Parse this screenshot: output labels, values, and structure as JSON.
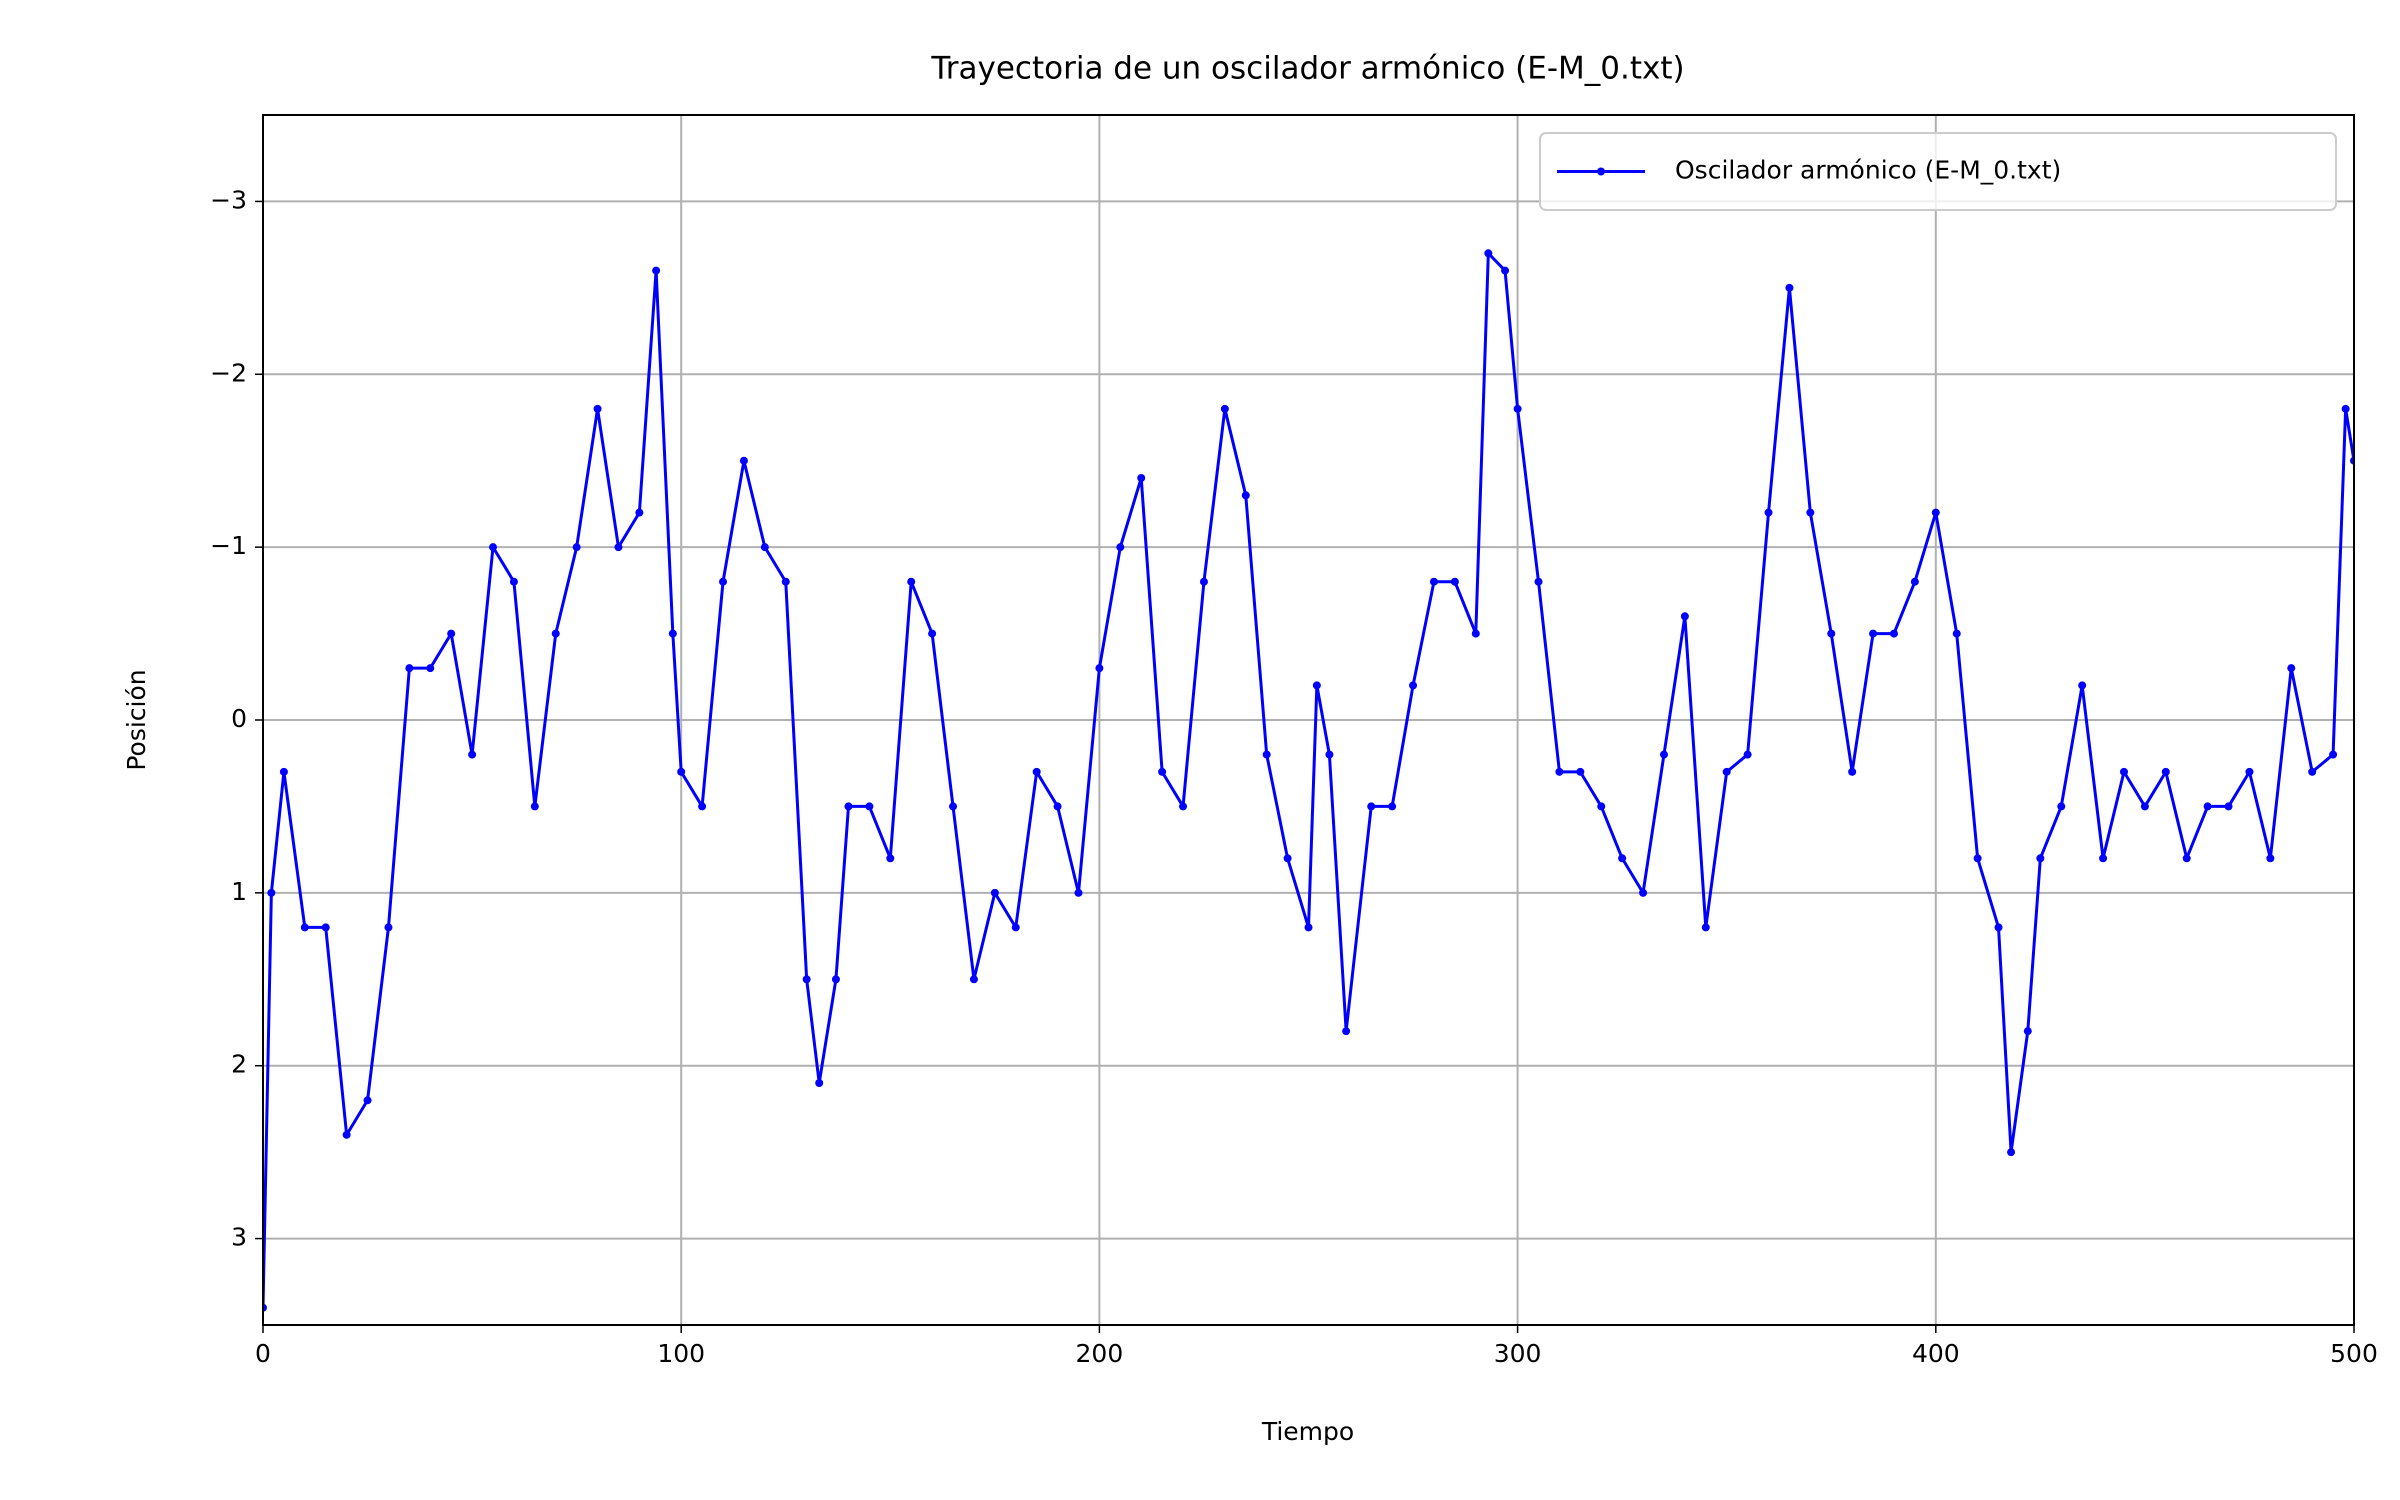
{
  "chart_data": {
    "type": "line",
    "title": "Trayectoria de un oscilador armónico (E-M_0.txt)",
    "xlabel": "Tiempo",
    "ylabel": "Posición",
    "x": [
      0,
      2,
      5,
      10,
      15,
      20,
      25,
      30,
      35,
      40,
      45,
      50,
      55,
      60,
      65,
      70,
      75,
      80,
      85,
      90,
      94,
      98,
      100,
      105,
      110,
      115,
      120,
      125,
      130,
      133,
      137,
      140,
      145,
      150,
      155,
      160,
      165,
      170,
      175,
      180,
      185,
      190,
      195,
      200,
      205,
      210,
      215,
      220,
      225,
      230,
      235,
      240,
      245,
      250,
      252,
      255,
      259,
      265,
      270,
      275,
      280,
      285,
      290,
      293,
      297,
      300,
      305,
      310,
      315,
      320,
      325,
      330,
      335,
      340,
      345,
      350,
      355,
      360,
      365,
      370,
      375,
      380,
      385,
      390,
      395,
      400,
      405,
      410,
      415,
      418,
      422,
      425,
      430,
      435,
      440,
      445,
      450,
      455,
      460,
      465,
      470,
      475,
      480,
      485,
      490,
      495,
      498,
      500
    ],
    "series": [
      {
        "name": "Oscilador armónico (E-M_0.txt)",
        "color": "blue",
        "values": [
          3.4,
          1.0,
          0.3,
          1.2,
          1.2,
          2.4,
          2.2,
          1.2,
          -0.3,
          -0.3,
          -0.5,
          0.2,
          -1.0,
          -0.8,
          0.5,
          -0.5,
          -1.0,
          -1.8,
          -1.0,
          -1.2,
          -2.6,
          -0.5,
          0.3,
          0.5,
          -0.8,
          -1.5,
          -1.0,
          -0.8,
          1.5,
          2.1,
          1.5,
          0.5,
          0.5,
          0.8,
          -0.8,
          -0.5,
          0.5,
          1.5,
          1.0,
          1.2,
          0.3,
          0.5,
          1.0,
          -0.3,
          -1.0,
          -1.4,
          0.3,
          0.5,
          -0.8,
          -1.8,
          -1.3,
          0.2,
          0.8,
          1.2,
          -0.2,
          0.2,
          1.8,
          0.5,
          0.5,
          -0.2,
          -0.8,
          -0.8,
          -0.5,
          -2.7,
          -2.6,
          -1.8,
          -0.8,
          0.3,
          0.3,
          0.5,
          0.8,
          1.0,
          0.2,
          -0.6,
          1.2,
          0.3,
          0.2,
          -1.2,
          -2.5,
          -1.2,
          -0.5,
          0.3,
          -0.5,
          -0.5,
          -0.8,
          -1.2,
          -0.5,
          0.8,
          1.2,
          2.5,
          1.8,
          0.8,
          0.5,
          -0.2,
          0.8,
          0.3,
          0.5,
          0.3,
          0.8,
          0.5,
          0.5,
          0.3,
          0.8,
          -0.3,
          0.3,
          0.2,
          -1.8,
          -1.5
        ]
      }
    ],
    "xlim": [
      0,
      500
    ],
    "ylim": [
      3.5,
      -3.5
    ],
    "xticks": [
      0,
      100,
      200,
      300,
      400,
      500
    ],
    "yticks": [
      {
        "value": -3,
        "label": "−3"
      },
      {
        "value": -2,
        "label": "−2"
      },
      {
        "value": -1,
        "label": "−1"
      },
      0,
      1,
      2,
      3
    ],
    "grid": true,
    "legend": "upper right"
  }
}
